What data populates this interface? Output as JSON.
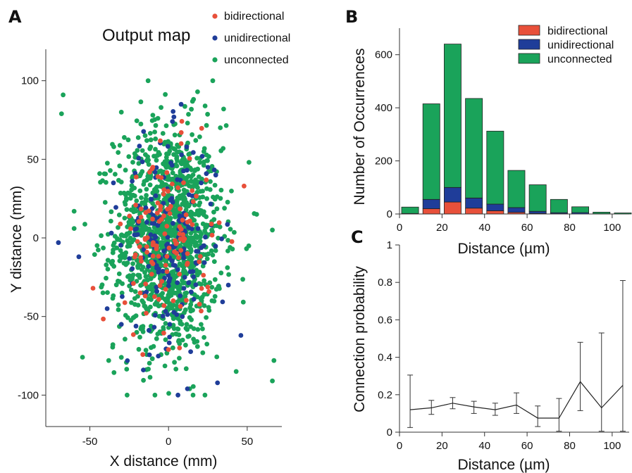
{
  "panels": {
    "a": {
      "letter": "A",
      "title": "Output map",
      "xlabel": "X distance (mm)",
      "ylabel": "Y distance (mm)"
    },
    "b": {
      "letter": "B",
      "xlabel": "Distance (µm)",
      "ylabel": "Number of Occurrences"
    },
    "c": {
      "letter": "C",
      "xlabel": "Distance (µm)",
      "ylabel": "Connection probability"
    }
  },
  "colors": {
    "bidirectional": "#e8503a",
    "unidirectional": "#1f3d99",
    "unconnected": "#1aa35a"
  },
  "chart_data": [
    {
      "type": "scatter",
      "title": "Output map",
      "xlabel": "X distance (mm)",
      "ylabel": "Y distance (mm)",
      "xlim": [
        -78,
        72
      ],
      "ylim": [
        -120,
        120
      ],
      "xticks": [
        -50,
        0,
        50
      ],
      "yticks": [
        100,
        50,
        0,
        -50,
        -100
      ],
      "legend": "top-right",
      "series": [
        {
          "name": "bidirectional",
          "n_points": 120,
          "spread_x": 14,
          "spread_y": 28,
          "points": [
            [
              -48,
              -32
            ],
            [
              48,
              33
            ],
            [
              0,
              -71
            ],
            [
              7,
              -70
            ],
            [
              -8,
              -5
            ],
            [
              12,
              -10
            ],
            [
              -5,
              20
            ],
            [
              3,
              -40
            ],
            [
              -18,
              -35
            ],
            [
              15,
              30
            ],
            [
              -10,
              45
            ],
            [
              8,
              60
            ]
          ]
        },
        {
          "name": "unidirectional",
          "n_points": 190,
          "spread_x": 15,
          "spread_y": 32,
          "points": [
            [
              -70,
              -3
            ],
            [
              -57,
              -12
            ],
            [
              -39,
              -45
            ],
            [
              -16,
              -84
            ],
            [
              6,
              -100
            ],
            [
              12,
              -96
            ],
            [
              46,
              -62
            ],
            [
              8,
              85
            ],
            [
              -35,
              35
            ],
            [
              38,
              -30
            ],
            [
              -30,
              -55
            ],
            [
              30,
              40
            ]
          ]
        },
        {
          "name": "unconnected",
          "n_points": 1300,
          "spread_x": 17,
          "spread_y": 36,
          "points": [
            [
              -67,
              91
            ],
            [
              -68,
              79
            ],
            [
              -13,
              100
            ],
            [
              66,
              5
            ],
            [
              56,
              15
            ],
            [
              67,
              -78
            ],
            [
              66,
              -91
            ],
            [
              -38,
              -78
            ],
            [
              43,
              -85
            ],
            [
              -60,
              6
            ],
            [
              -30,
              80
            ],
            [
              35,
              82
            ]
          ]
        }
      ]
    },
    {
      "type": "bar",
      "stacked": true,
      "xlabel": "Distance (µm)",
      "ylabel": "Number of Occurrences",
      "xlim": [
        0,
        108
      ],
      "ylim": [
        0,
        700
      ],
      "xticks": [
        0,
        20,
        40,
        60,
        80,
        100
      ],
      "yticks": [
        0,
        200,
        400,
        600
      ],
      "bin_width": 8,
      "x": [
        5,
        15,
        25,
        35,
        45,
        55,
        65,
        75,
        85,
        95,
        105
      ],
      "legend": "top-right",
      "series": [
        {
          "name": "bidirectional",
          "values": [
            0,
            20,
            45,
            22,
            12,
            6,
            2,
            1,
            0,
            0,
            0
          ]
        },
        {
          "name": "unidirectional",
          "values": [
            2,
            35,
            55,
            38,
            25,
            18,
            8,
            4,
            5,
            1,
            0
          ]
        },
        {
          "name": "unconnected",
          "values": [
            24,
            360,
            540,
            375,
            275,
            140,
            100,
            50,
            22,
            6,
            4
          ]
        }
      ]
    },
    {
      "type": "line",
      "xlabel": "Distance (µm)",
      "ylabel": "Connection probability",
      "xlim": [
        0,
        108
      ],
      "ylim": [
        0,
        1
      ],
      "xticks": [
        0,
        20,
        40,
        60,
        80,
        100
      ],
      "yticks": [
        0,
        0.2,
        0.4,
        0.6,
        0.8,
        1
      ],
      "x": [
        5,
        15,
        25,
        35,
        45,
        55,
        65,
        75,
        85,
        95,
        105
      ],
      "y": [
        0.12,
        0.13,
        0.155,
        0.135,
        0.12,
        0.145,
        0.075,
        0.075,
        0.27,
        0.13,
        0.25
      ],
      "err_low": [
        0.025,
        0.095,
        0.125,
        0.1,
        0.09,
        0.1,
        0.03,
        0.005,
        0.115,
        0.005,
        0.005
      ],
      "err_high": [
        0.305,
        0.17,
        0.185,
        0.165,
        0.155,
        0.21,
        0.14,
        0.18,
        0.48,
        0.53,
        0.81
      ]
    }
  ]
}
